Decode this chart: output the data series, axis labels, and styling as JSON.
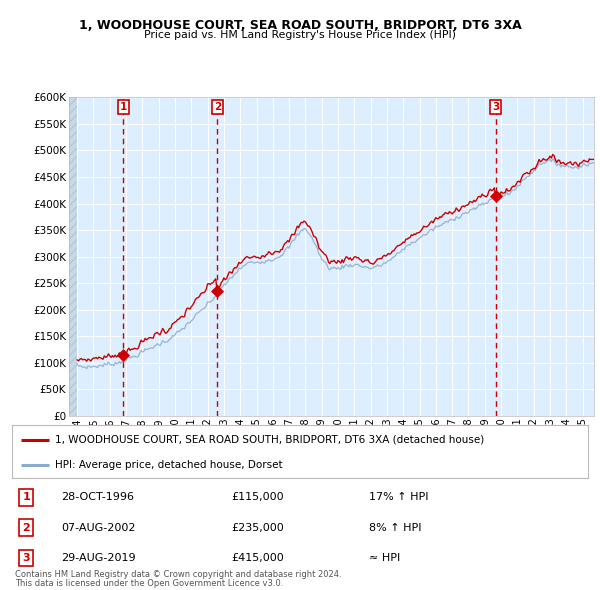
{
  "title": "1, WOODHOUSE COURT, SEA ROAD SOUTH, BRIDPORT, DT6 3XA",
  "subtitle": "Price paid vs. HM Land Registry's House Price Index (HPI)",
  "purchases": [
    {
      "num": 1,
      "date": "28-OCT-1996",
      "x": 1996.83,
      "price": 115000
    },
    {
      "num": 2,
      "date": "07-AUG-2002",
      "x": 2002.6,
      "price": 235000
    },
    {
      "num": 3,
      "date": "29-AUG-2019",
      "x": 2019.66,
      "price": 415000
    }
  ],
  "legend_property": "1, WOODHOUSE COURT, SEA ROAD SOUTH, BRIDPORT, DT6 3XA (detached house)",
  "legend_hpi": "HPI: Average price, detached house, Dorset",
  "footnote1": "Contains HM Land Registry data © Crown copyright and database right 2024.",
  "footnote2": "This data is licensed under the Open Government Licence v3.0.",
  "table_rows": [
    {
      "num": 1,
      "date": "28-OCT-1996",
      "price": "£115,000",
      "rel": "17% ↑ HPI"
    },
    {
      "num": 2,
      "date": "07-AUG-2002",
      "price": "£235,000",
      "rel": "8% ↑ HPI"
    },
    {
      "num": 3,
      "date": "29-AUG-2019",
      "price": "£415,000",
      "rel": "≈ HPI"
    }
  ],
  "ylim": [
    0,
    600000
  ],
  "xlim_start": 1993.5,
  "xlim_end": 2025.7,
  "plot_bg": "#ddeeff",
  "grid_color": "#ffffff",
  "red_line_color": "#cc0000",
  "blue_line_color": "#88aacc",
  "marker_color": "#cc0000",
  "dashed_line_color": "#cc0000"
}
